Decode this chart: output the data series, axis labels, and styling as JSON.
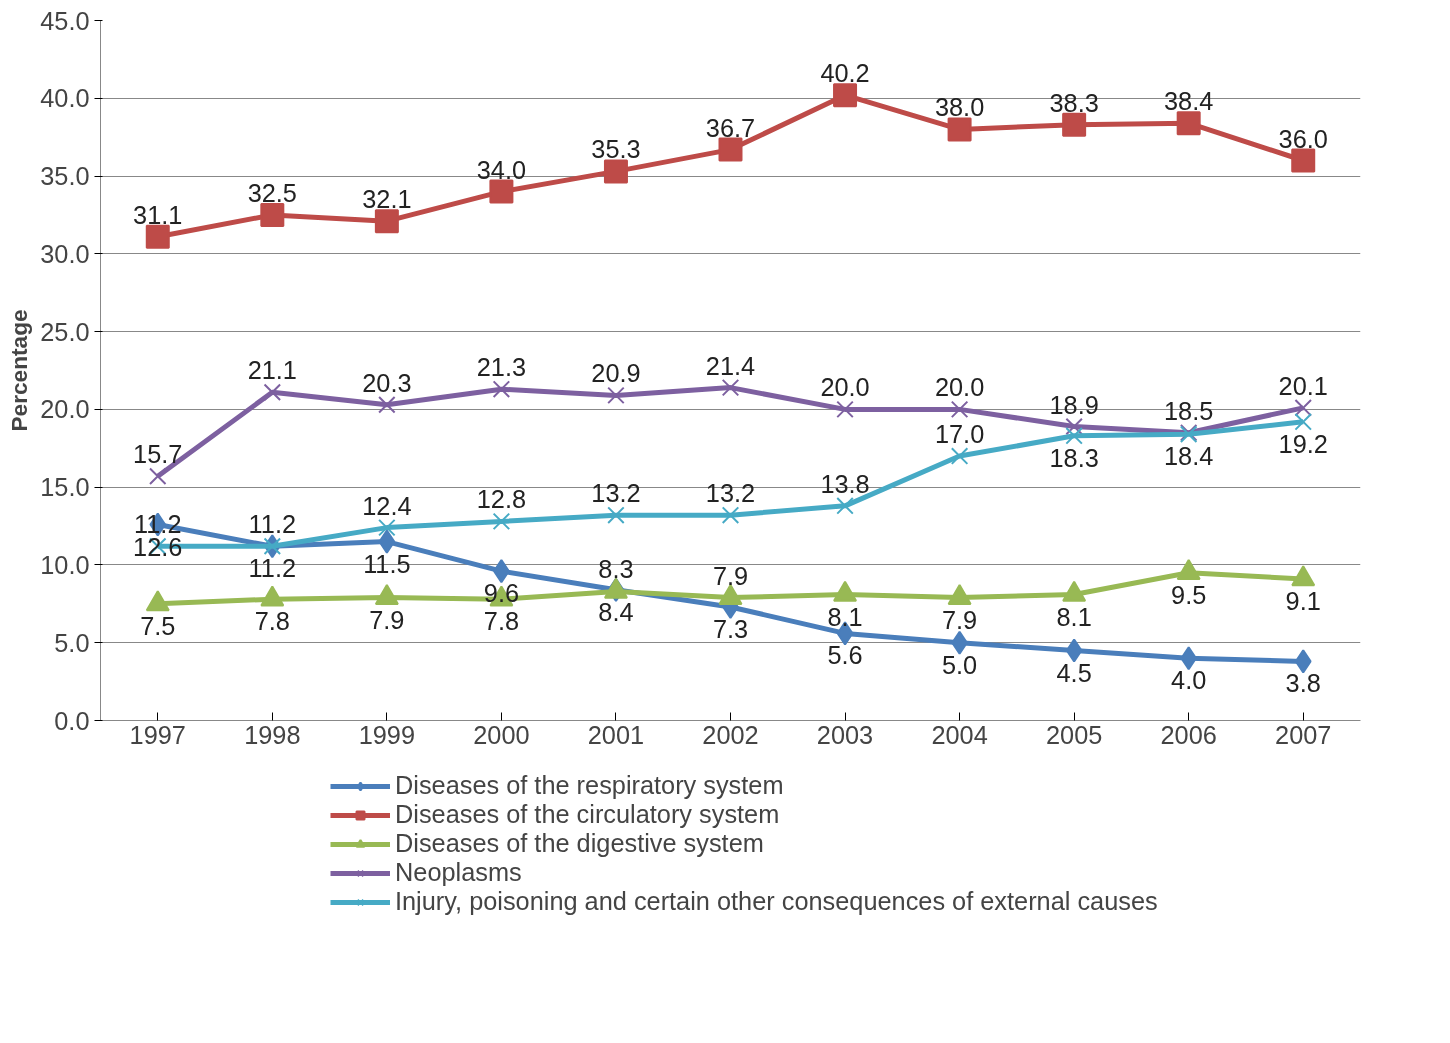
{
  "chart_data": {
    "type": "line",
    "ylabel": "Percentage",
    "categories": [
      "1997",
      "1998",
      "1999",
      "2000",
      "2001",
      "2002",
      "2003",
      "2004",
      "2005",
      "2006",
      "2007"
    ],
    "ylim": [
      0,
      45
    ],
    "yticks": [
      {
        "value": 0,
        "label": "0.0"
      },
      {
        "value": 5,
        "label": "5.0"
      },
      {
        "value": 10,
        "label": "10.0"
      },
      {
        "value": 15,
        "label": "15.0"
      },
      {
        "value": 20,
        "label": "20.0"
      },
      {
        "value": 25,
        "label": "25.0"
      },
      {
        "value": 30,
        "label": "30.0"
      },
      {
        "value": 35,
        "label": "35.0"
      },
      {
        "value": 40,
        "label": "40.0"
      },
      {
        "value": 45,
        "label": "45.0"
      }
    ],
    "grid": "y",
    "legend": "bottom",
    "line_style": "solid",
    "series": [
      {
        "name": "Diseases of the respiratory system",
        "color": "#4a7ebb",
        "marker": "diamond",
        "values": [
          12.6,
          11.2,
          11.5,
          9.6,
          8.4,
          7.3,
          5.6,
          5.0,
          4.5,
          4.0,
          3.8
        ],
        "value_labels": [
          "12.6",
          "11.2",
          "11.5",
          "9.6",
          "8.4",
          "7.3",
          "5.6",
          "5.0",
          "4.5",
          "4.0",
          "3.8"
        ]
      },
      {
        "name": "Diseases of the circulatory system",
        "color": "#be4b48",
        "marker": "square",
        "values": [
          31.1,
          32.5,
          32.1,
          34.0,
          35.3,
          36.7,
          40.2,
          38.0,
          38.3,
          38.4,
          36.0
        ],
        "value_labels": [
          "31.1",
          "32.5",
          "32.1",
          "34.0",
          "35.3",
          "36.7",
          "40.2",
          "38.0",
          "38.3",
          "38.4",
          "36.0"
        ]
      },
      {
        "name": "Diseases of the digestive system",
        "color": "#98b954",
        "marker": "triangle",
        "values": [
          7.5,
          7.8,
          7.9,
          7.8,
          8.3,
          7.9,
          8.1,
          7.9,
          8.1,
          9.5,
          9.1
        ],
        "value_labels": [
          "7.5",
          "7.8",
          "7.9",
          "7.8",
          "8.3",
          "7.9",
          "8.1",
          "7.9",
          "8.1",
          "9.5",
          "9.1"
        ]
      },
      {
        "name": "Neoplasms",
        "color": "#7d60a0",
        "marker": "cross",
        "values": [
          15.7,
          21.1,
          20.3,
          21.3,
          20.9,
          21.4,
          20.0,
          20.0,
          18.9,
          18.5,
          20.1
        ],
        "value_labels": [
          "15.7",
          "21.1",
          "20.3",
          "21.3",
          "20.9",
          "21.4",
          "20.0",
          "20.0",
          "18.9",
          "18.5",
          "20.1"
        ]
      },
      {
        "name": "Injury, poisoning and certain other consequences of external causes",
        "color": "#46aac5",
        "marker": "cross",
        "values": [
          11.2,
          11.2,
          12.4,
          12.8,
          13.2,
          13.2,
          13.8,
          17.0,
          18.3,
          18.4,
          19.2
        ],
        "value_labels": [
          "11.2",
          "11.2",
          "12.4",
          "12.8",
          "13.2",
          "13.2",
          "13.8",
          "17.0",
          "18.3",
          "18.4",
          "19.2"
        ]
      }
    ]
  }
}
